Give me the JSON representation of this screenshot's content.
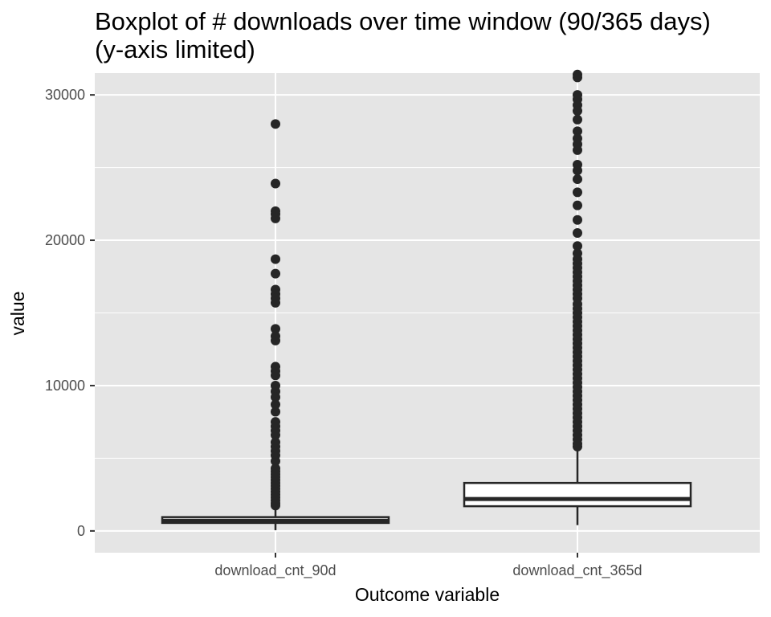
{
  "chart_data": {
    "type": "boxplot",
    "title_lines": [
      "Boxplot of # downloads over time window (90/365 days)",
      "(y-axis limited)"
    ],
    "xlabel": "Outcome variable",
    "ylabel": "value",
    "ylim": [
      -1500,
      31500
    ],
    "yticks": [
      0,
      10000,
      20000,
      30000
    ],
    "ytick_labels": [
      "0",
      "10000",
      "20000",
      "30000"
    ],
    "minor_ygrid": [
      5000,
      15000,
      25000
    ],
    "grid": true,
    "panel_color": "#e5e5e5",
    "grid_color": "#ffffff",
    "box_fill": "#ffffff",
    "box_stroke": "#262626",
    "categories": [
      "download_cnt_90d",
      "download_cnt_365d"
    ],
    "boxes": [
      {
        "category": "download_cnt_90d",
        "q1": 550,
        "median": 700,
        "q3": 950,
        "whisker_low": 50,
        "whisker_high": 1550,
        "outliers": [
          28000,
          23900,
          22000,
          21800,
          21500,
          18700,
          17700,
          16600,
          16300,
          16000,
          15700,
          13900,
          13400,
          13100,
          11300,
          11000,
          10700,
          10000,
          9600,
          9200,
          8700,
          8200,
          7500,
          7200,
          6900,
          6600,
          6100,
          5800,
          5500,
          5200,
          4800,
          4300,
          4100,
          3900,
          3700,
          3500,
          3300,
          3100,
          2900,
          2700,
          2500,
          2300,
          2100,
          1900,
          1750
        ]
      },
      {
        "category": "download_cnt_365d",
        "q1": 1700,
        "median": 2200,
        "q3": 3300,
        "whisker_low": 400,
        "whisker_high": 5700,
        "outliers": [
          31400,
          31200,
          30000,
          29700,
          29300,
          28900,
          28300,
          27500,
          27000,
          26600,
          26200,
          25200,
          24800,
          24200,
          23300,
          22400,
          21400,
          20500,
          19600,
          19100,
          18700,
          18400,
          18100,
          17800,
          17500,
          17200,
          16900,
          16600,
          16300,
          16000,
          15600,
          15300,
          15000,
          14700,
          14400,
          14100,
          13800,
          13500,
          13200,
          12900,
          12600,
          12300,
          12000,
          11700,
          11400,
          11100,
          10800,
          10500,
          10200,
          9900,
          9600,
          9300,
          9000,
          8700,
          8400,
          8100,
          7800,
          7500,
          7200,
          6900,
          6600,
          6300,
          6000,
          5800
        ]
      }
    ]
  }
}
